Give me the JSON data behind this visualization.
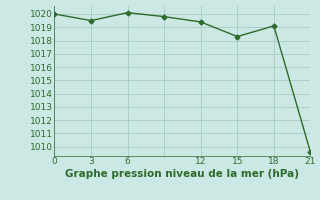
{
  "x": [
    0,
    3,
    6,
    9,
    12,
    15,
    18,
    21
  ],
  "y": [
    1020.0,
    1019.5,
    1020.1,
    1019.8,
    1019.4,
    1018.3,
    1019.1,
    1009.6
  ],
  "line_color": "#2d6b2d",
  "marker": "D",
  "marker_size": 2.5,
  "bg_color": "#cce8e4",
  "grid_color": "#aacfca",
  "xlabel": "Graphe pression niveau de la mer (hPa)",
  "xlabel_fontsize": 7.5,
  "xtick_labels": [
    "0",
    "3",
    "6",
    "",
    "12",
    "15",
    "18",
    "21"
  ],
  "xticks": [
    0,
    3,
    6,
    9,
    12,
    15,
    18,
    21
  ],
  "yticks": [
    1010,
    1011,
    1012,
    1013,
    1014,
    1015,
    1016,
    1017,
    1018,
    1019,
    1020
  ],
  "ylim": [
    1009.3,
    1020.6
  ],
  "xlim": [
    0,
    21
  ]
}
